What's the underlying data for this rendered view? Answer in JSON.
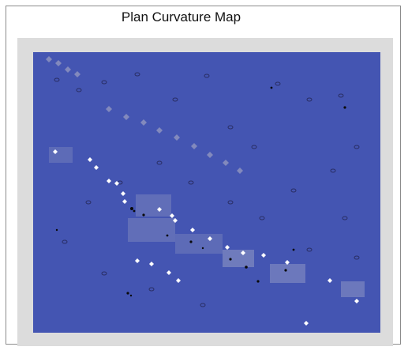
{
  "window": {
    "title": "Plan Curvature Map"
  },
  "map": {
    "background_color": "#3d4fae",
    "panel_color": "#dcdcdc",
    "highlight_color": "#ffffff",
    "feature_color": "#7f86b8"
  }
}
